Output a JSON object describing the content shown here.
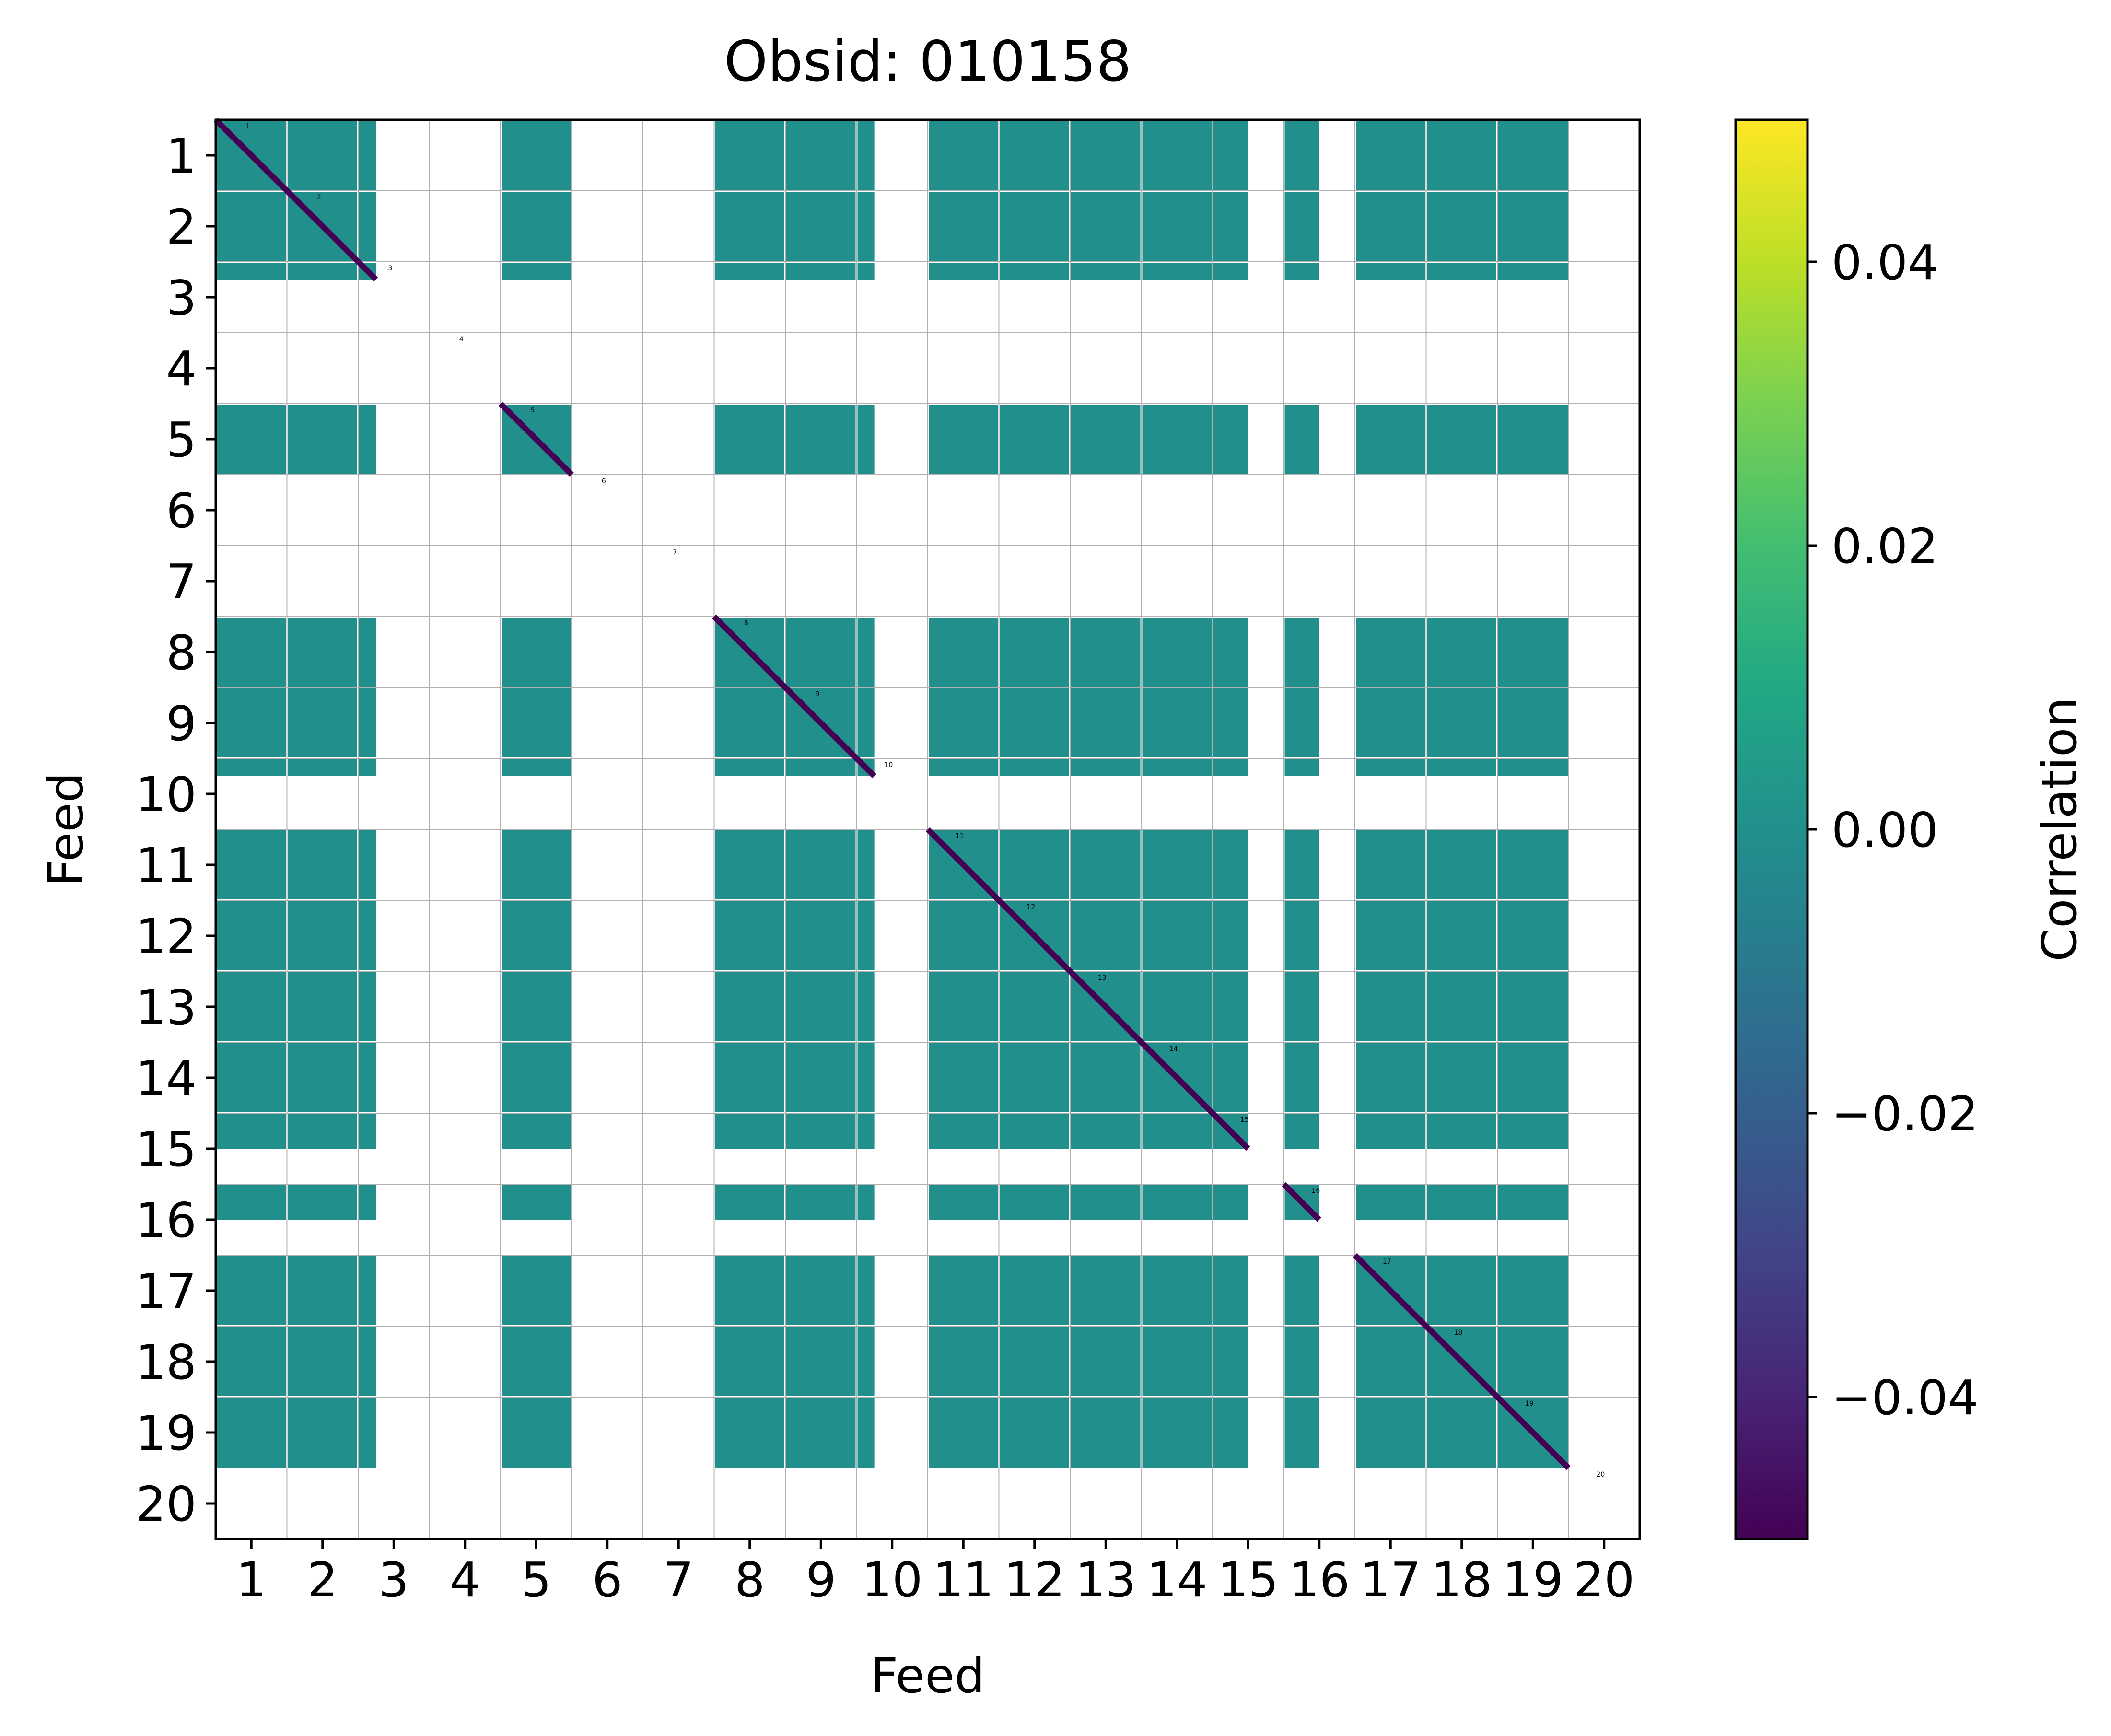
{
  "chart_data": {
    "type": "heatmap",
    "title": "Obsid: 010158",
    "xlabel": "Feed",
    "ylabel": "Feed",
    "x_ticks": [
      "1",
      "2",
      "3",
      "4",
      "5",
      "6",
      "7",
      "8",
      "9",
      "10",
      "11",
      "12",
      "13",
      "14",
      "15",
      "16",
      "17",
      "18",
      "19",
      "20"
    ],
    "y_ticks": [
      "1",
      "2",
      "3",
      "4",
      "5",
      "6",
      "7",
      "8",
      "9",
      "10",
      "11",
      "12",
      "13",
      "14",
      "15",
      "16",
      "17",
      "18",
      "19",
      "20"
    ],
    "feeds": [
      1,
      2,
      3,
      4,
      5,
      6,
      7,
      8,
      9,
      10,
      11,
      12,
      13,
      14,
      15,
      16,
      17,
      18,
      19,
      20
    ],
    "colorbar": {
      "label": "Correlation",
      "min": -0.05,
      "max": 0.05,
      "ticks": [
        -0.04,
        -0.02,
        0.0,
        0.02,
        0.04
      ],
      "tick_labels": [
        "−0.04",
        "−0.02",
        "0.00",
        "0.02",
        "0.04"
      ],
      "colormap": "viridis"
    },
    "feed_labels": [
      "1",
      "2",
      "3",
      "4",
      "5",
      "6",
      "7",
      "8",
      "9",
      "10",
      "11",
      "12",
      "13",
      "14",
      "15",
      "16",
      "17",
      "18",
      "19",
      "20"
    ],
    "diagonal_value": -0.05,
    "offdiag_value": 0.0,
    "feed_groups": [
      [
        1,
        2
      ],
      [
        3
      ],
      [
        5
      ],
      [
        8,
        9,
        10
      ],
      [
        11,
        12,
        13,
        14
      ],
      [
        15
      ],
      [
        16
      ],
      [
        17,
        18,
        19
      ]
    ],
    "fractional_feeds": {
      "3": 0.25,
      "10": 0.25,
      "15": 0.5,
      "16": 0.5
    },
    "masked_feeds": [
      4,
      6,
      7,
      20
    ],
    "colors": {
      "offdiag": "#21908d",
      "diagonal": "#440154",
      "grid": "#b0b0b0"
    }
  }
}
